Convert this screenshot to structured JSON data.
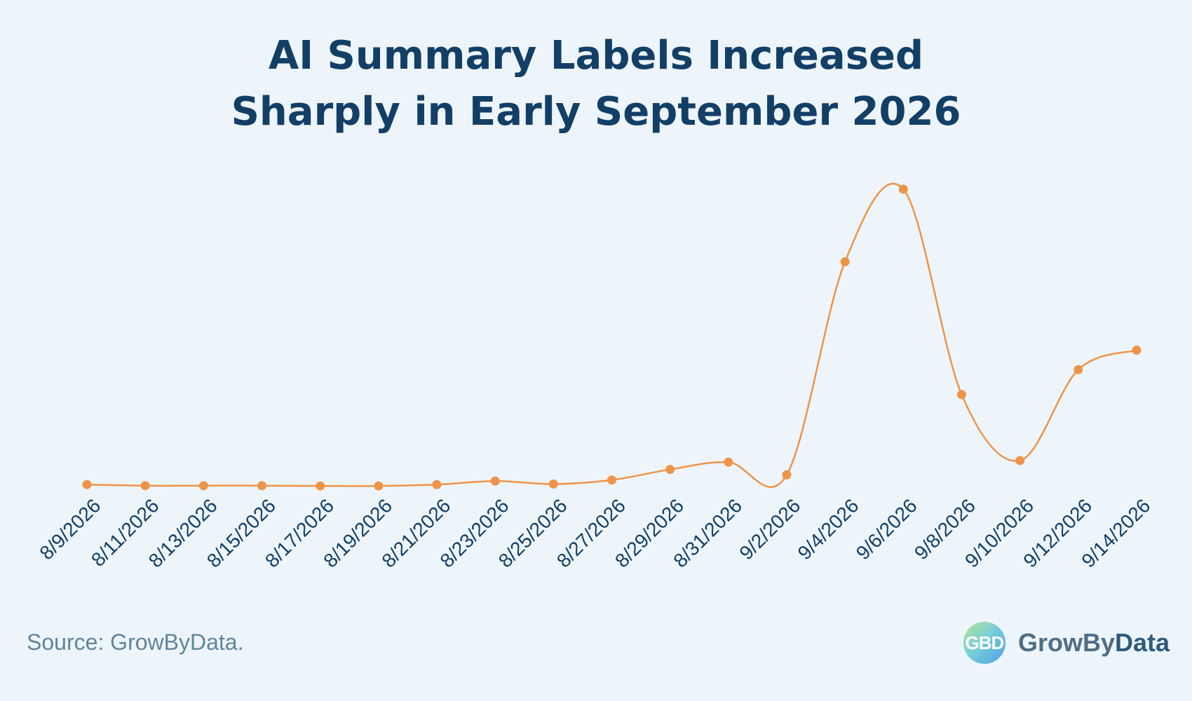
{
  "title_lines": [
    "AI Summary Labels Increased",
    "Sharply in Early September 2026"
  ],
  "source": "Source: GrowByData.",
  "brand": {
    "logo_letters": "GBD",
    "name_part1": "GrowBy",
    "name_part2": "Data"
  },
  "colors": {
    "background": "#edf5fa",
    "title": "#133f66",
    "line": "#ee9449",
    "tick_label": "#133f66",
    "source": "#62849c"
  },
  "chart_data": {
    "type": "line",
    "title": "AI Summary Labels Increased Sharply in Early September 2026",
    "xlabel": "",
    "ylabel": "",
    "grid": false,
    "legend": "none",
    "y_axis_visible": false,
    "x": [
      "8/9/2026",
      "8/11/2026",
      "8/13/2026",
      "8/15/2026",
      "8/17/2026",
      "8/19/2026",
      "8/21/2026",
      "8/23/2026",
      "8/25/2026",
      "8/27/2026",
      "8/29/2026",
      "8/31/2026",
      "9/2/2026",
      "9/4/2026",
      "9/6/2026",
      "9/8/2026",
      "9/10/2026",
      "9/12/2026",
      "9/14/2026"
    ],
    "series": [
      {
        "values": [
          2.0,
          1.6,
          1.6,
          1.6,
          1.5,
          1.5,
          2.0,
          3.3,
          2.2,
          3.7,
          7.6,
          10.3,
          5.6,
          84.4,
          111.2,
          35.3,
          10.9,
          44.5,
          51.7
        ]
      }
    ],
    "ylim": [
      0,
      120
    ]
  }
}
